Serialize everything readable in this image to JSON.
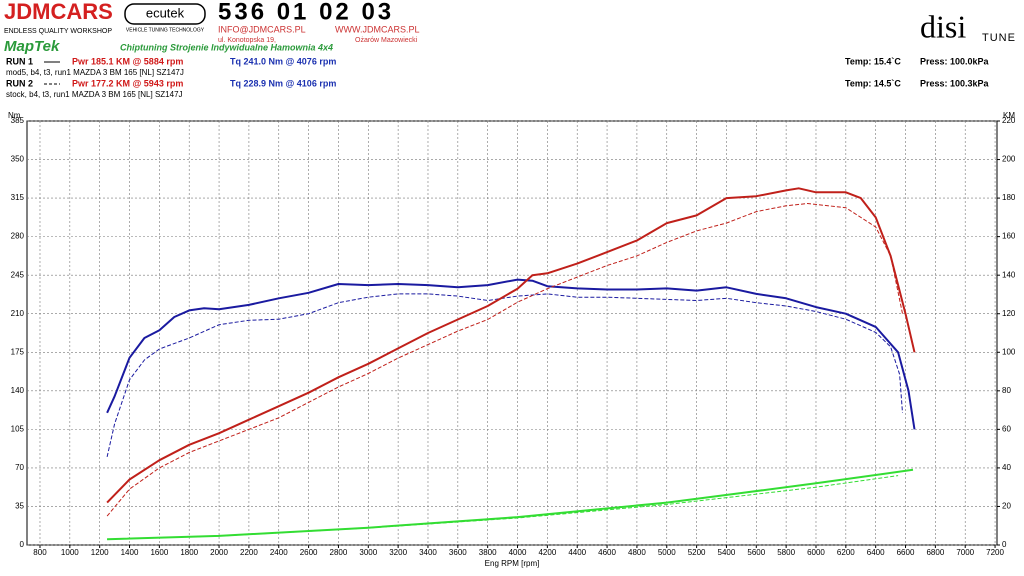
{
  "header": {
    "brand": "JDMCARS",
    "brand_sub": "ENDLESS QUALITY WORKSHOP",
    "ecutek": "ecutek",
    "ecutek_sub": "VEHICLE TUNING TECHNOLOGY",
    "phone": "536 01 02 03",
    "email": "INFO@JDMCARS.PL",
    "www": "WWW.JDMCARS.PL",
    "street": "ul. Konotopska 19,",
    "city": "Ożarów Mazowiecki",
    "maptek": "MapTek",
    "slogan": "Chiptuning Strojenie Indywidualne Hamownia 4x4",
    "disi": "disi",
    "tune": "TUNE",
    "runs": [
      {
        "label": "RUN 1",
        "pwr": "Pwr  185.1 KM @ 5884 rpm",
        "tq": "Tq 241.0 Nm @ 4076 rpm",
        "desc": "mod5, b4, t3, run1 MAZDA 3 BM 165 [NL] SZ147J",
        "temp": "Temp: 15.4`C",
        "press": "Press: 100.0kPa"
      },
      {
        "label": "RUN 2",
        "pwr": "Pwr  177.2 KM @ 5943 rpm",
        "tq": "Tq 228.9 Nm @ 4106 rpm",
        "desc": "stock, b4, t3, run1 MAZDA 3 BM 165 [NL] SZ147J",
        "temp": "Temp: 14.5`C",
        "press": "Press: 100.3kPa"
      }
    ]
  },
  "chart_data": {
    "type": "line",
    "ylabel": "Nm",
    "y2label": "KM",
    "xlabel": "Eng RPM [rpm]",
    "xlim": [
      713,
      7213
    ],
    "xticks": [
      800,
      1000,
      1200,
      1400,
      1600,
      1800,
      2000,
      2200,
      2400,
      2600,
      2800,
      3000,
      3200,
      3400,
      3600,
      3800,
      4000,
      4200,
      4400,
      4600,
      4800,
      5000,
      5200,
      5400,
      5600,
      5800,
      6000,
      6200,
      6400,
      6600,
      6800,
      7000,
      7200
    ],
    "ylim": [
      0,
      385
    ],
    "yticks": [
      0,
      35,
      70,
      105,
      140,
      175,
      210,
      245,
      280,
      315,
      350,
      385
    ],
    "y2lim": [
      0,
      220
    ],
    "y2ticks": [
      0,
      20,
      40,
      60,
      80,
      100,
      120,
      140,
      160,
      180,
      200,
      220
    ],
    "grid": true,
    "series": [
      {
        "color": "#1a1aa0",
        "dash": false,
        "axis": "y",
        "x": [
          1250,
          1300,
          1400,
          1500,
          1600,
          1700,
          1800,
          1900,
          2000,
          2200,
          2400,
          2600,
          2800,
          3000,
          3200,
          3400,
          3600,
          3800,
          4000,
          4100,
          4200,
          4400,
          4600,
          4800,
          5000,
          5200,
          5400,
          5600,
          5800,
          6000,
          6200,
          6400,
          6550,
          6620,
          6660
        ],
        "values": [
          120,
          135,
          170,
          188,
          195,
          207,
          213,
          215,
          214,
          218,
          224,
          229,
          237,
          236,
          237,
          236,
          234,
          236,
          241,
          240,
          235,
          233,
          232,
          232,
          233,
          231,
          234,
          228,
          224,
          216,
          210,
          198,
          175,
          140,
          105
        ]
      },
      {
        "color": "#1a1aa0",
        "dash": true,
        "axis": "y",
        "x": [
          1250,
          1300,
          1400,
          1500,
          1600,
          1800,
          2000,
          2200,
          2400,
          2600,
          2800,
          3000,
          3200,
          3400,
          3600,
          3800,
          4000,
          4200,
          4400,
          4600,
          4800,
          5000,
          5200,
          5400,
          5600,
          5800,
          6000,
          6200,
          6400,
          6500,
          6560,
          6580
        ],
        "values": [
          80,
          110,
          150,
          168,
          178,
          188,
          200,
          204,
          205,
          210,
          220,
          225,
          228,
          228,
          226,
          222,
          226,
          228,
          225,
          225,
          224,
          223,
          222,
          224,
          220,
          217,
          212,
          205,
          193,
          180,
          155,
          120
        ]
      },
      {
        "color": "#c0201a",
        "dash": false,
        "axis": "y2",
        "x": [
          1250,
          1400,
          1600,
          1800,
          2000,
          2200,
          2400,
          2600,
          2800,
          3000,
          3200,
          3400,
          3600,
          3800,
          4000,
          4100,
          4200,
          4400,
          4600,
          4800,
          5000,
          5200,
          5400,
          5600,
          5800,
          5884,
          6000,
          6200,
          6300,
          6400,
          6500,
          6600,
          6660
        ],
        "values": [
          22,
          34,
          44,
          52,
          58,
          65,
          72,
          79,
          87,
          94,
          102,
          110,
          117,
          124,
          133,
          140,
          141,
          146,
          152,
          158,
          167,
          171,
          180,
          181,
          184,
          185.1,
          183,
          183,
          180,
          170,
          150,
          120,
          100
        ]
      },
      {
        "color": "#c0201a",
        "dash": true,
        "axis": "y2",
        "x": [
          1250,
          1400,
          1600,
          1800,
          2000,
          2200,
          2400,
          2600,
          2800,
          3000,
          3200,
          3400,
          3600,
          3800,
          4000,
          4200,
          4400,
          4600,
          4800,
          5000,
          5200,
          5400,
          5600,
          5800,
          5943,
          6200,
          6400,
          6500,
          6580
        ],
        "values": [
          15,
          29,
          40,
          48,
          54,
          60,
          66,
          74,
          82,
          89,
          97,
          104,
          111,
          117,
          126,
          133,
          139,
          145,
          150,
          157,
          163,
          167,
          173,
          176,
          177.2,
          175,
          165,
          150,
          120
        ]
      },
      {
        "color": "#33dd33",
        "dash": false,
        "axis": "y2",
        "x": [
          1250,
          2000,
          3000,
          4000,
          5000,
          5500,
          6000,
          6650
        ],
        "values": [
          3,
          4.7,
          9,
          14.5,
          22,
          27,
          32,
          39
        ]
      },
      {
        "color": "#33dd33",
        "dash": true,
        "axis": "y2",
        "x": [
          1250,
          2000,
          3000,
          4000,
          5000,
          5500,
          6000,
          6550
        ],
        "values": [
          3,
          4.6,
          8.8,
          14,
          21,
          25.5,
          30,
          36
        ]
      }
    ]
  }
}
